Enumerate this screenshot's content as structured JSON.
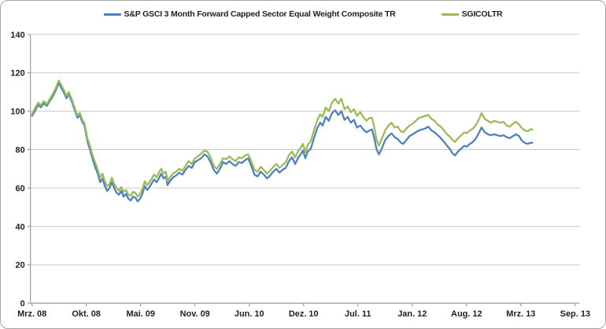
{
  "axis": {
    "grid_color": "#c8c8c8",
    "axis_color": "#9c9c9c",
    "label_color": "#1f1f1f",
    "frame_border_color": "#a6a6a6",
    "background": "#ffffff"
  },
  "chart_data": {
    "type": "line",
    "title": "",
    "xlabel": "",
    "ylabel": "",
    "grid": "horizontal",
    "legend_position": "top-center",
    "ylim": [
      0,
      140
    ],
    "y_ticks": [
      0,
      20,
      40,
      60,
      80,
      100,
      120,
      140
    ],
    "x_tick_labels": [
      "Mrz. 08",
      "Okt. 08",
      "Mai. 09",
      "Nov. 09",
      "Jun. 10",
      "Dez. 10",
      "Jul. 11",
      "Jan. 12",
      "Aug. 12",
      "Mrz. 13",
      "Sep. 13"
    ],
    "x_axis_note": "x_units are in tick-interval units: 0 = Mrz. 08 tick, 10 = Sep. 13 tick; data ends ~9.21 (approx. Apr. 13)",
    "x_units": [
      0,
      0.072,
      0.115,
      0.159,
      0.216,
      0.274,
      0.332,
      0.389,
      0.447,
      0.49,
      0.533,
      0.591,
      0.634,
      0.678,
      0.735,
      0.793,
      0.836,
      0.88,
      0.923,
      0.966,
      1.024,
      1.067,
      1.11,
      1.168,
      1.211,
      1.254,
      1.298,
      1.341,
      1.384,
      1.428,
      1.471,
      1.514,
      1.557,
      1.601,
      1.644,
      1.687,
      1.73,
      1.774,
      1.817,
      1.86,
      1.903,
      1.947,
      1.99,
      2.033,
      2.076,
      2.12,
      2.163,
      2.206,
      2.25,
      2.293,
      2.336,
      2.379,
      2.423,
      2.466,
      2.495,
      2.538,
      2.596,
      2.653,
      2.711,
      2.769,
      2.826,
      2.884,
      2.942,
      3.0,
      3.057,
      3.115,
      3.172,
      3.23,
      3.288,
      3.345,
      3.403,
      3.461,
      3.518,
      3.576,
      3.634,
      3.691,
      3.749,
      3.807,
      3.864,
      3.922,
      3.98,
      4.037,
      4.095,
      4.153,
      4.21,
      4.268,
      4.326,
      4.383,
      4.441,
      4.499,
      4.556,
      4.614,
      4.672,
      4.729,
      4.787,
      4.845,
      4.902,
      4.946,
      4.989,
      5.032,
      5.076,
      5.133,
      5.191,
      5.249,
      5.306,
      5.35,
      5.407,
      5.465,
      5.523,
      5.58,
      5.638,
      5.696,
      5.753,
      5.811,
      5.869,
      5.926,
      5.984,
      6.042,
      6.099,
      6.157,
      6.215,
      6.258,
      6.301,
      6.345,
      6.388,
      6.446,
      6.503,
      6.561,
      6.619,
      6.676,
      6.734,
      6.792,
      6.835,
      6.893,
      6.95,
      7.008,
      7.066,
      7.123,
      7.181,
      7.239,
      7.296,
      7.354,
      7.412,
      7.469,
      7.527,
      7.585,
      7.642,
      7.7,
      7.743,
      7.786,
      7.844,
      7.902,
      7.959,
      8.003,
      8.06,
      8.118,
      8.176,
      8.233,
      8.276,
      8.334,
      8.392,
      8.449,
      8.507,
      8.565,
      8.622,
      8.68,
      8.738,
      8.795,
      8.853,
      8.911,
      8.968,
      9.011,
      9.069,
      9.127,
      9.17,
      9.213
    ],
    "series": [
      {
        "name": "S&P GSCI 3 Month Forward Capped Sector Equal Weight Composite TR",
        "color": "#4F81BD",
        "values": [
          97.5,
          101,
          103.5,
          102,
          104,
          102.8,
          105.5,
          108,
          111.5,
          114.5,
          112.5,
          109.5,
          106.8,
          108.8,
          104.8,
          100,
          96.6,
          98,
          94.6,
          92.5,
          84,
          80,
          75.5,
          70.5,
          67.5,
          63,
          65,
          61,
          58.5,
          60,
          63,
          60,
          57.5,
          56.5,
          58.5,
          55.5,
          57,
          54.5,
          53.5,
          55.5,
          55,
          53,
          54.5,
          57,
          61,
          59,
          60.5,
          62.5,
          64.5,
          63,
          65,
          67.5,
          65,
          66,
          61.5,
          63.5,
          65.5,
          66.5,
          68,
          67,
          69.5,
          71.5,
          70.5,
          73.5,
          74.5,
          75.5,
          77.5,
          76.5,
          73.5,
          69.5,
          67.5,
          70,
          73.5,
          72.5,
          74,
          72.5,
          71.5,
          73.5,
          73,
          74.5,
          75.5,
          71.5,
          67,
          66,
          68.5,
          67,
          65,
          66.5,
          68.5,
          70,
          68,
          69.5,
          70.5,
          74,
          76,
          72.5,
          76,
          77.5,
          79.5,
          75.5,
          79,
          80.5,
          86,
          91,
          94,
          92.5,
          97,
          95,
          99,
          100.5,
          98,
          100,
          95.5,
          97,
          94,
          95.5,
          91.5,
          92.5,
          90.5,
          89,
          90,
          90.5,
          86,
          80,
          77.5,
          81,
          85,
          87,
          88.5,
          86.5,
          85.5,
          83.5,
          83,
          85,
          87,
          88,
          89,
          90,
          90.5,
          91,
          92,
          90,
          89,
          87.5,
          86,
          84,
          82,
          80,
          78,
          77,
          79,
          80.5,
          82,
          81.5,
          83,
          84,
          86,
          89,
          91.5,
          89,
          88,
          87.5,
          88,
          87.5,
          87,
          87.5,
          86.5,
          86,
          87,
          88,
          87,
          85,
          83.5,
          83,
          83.5,
          83.5
        ]
      },
      {
        "name": "SGICOLTR",
        "color": "#9BBB59",
        "values": [
          98.5,
          102.5,
          104.5,
          103,
          105.2,
          103.8,
          106.6,
          109.3,
          112.7,
          116,
          114,
          110.7,
          108,
          110,
          106,
          101.2,
          97.8,
          99.2,
          95.8,
          93.7,
          85.5,
          82,
          77.5,
          73,
          69.5,
          65.5,
          67.5,
          63.5,
          61,
          62,
          65.5,
          62,
          60,
          58.6,
          60.5,
          58,
          59,
          56.5,
          56,
          58,
          57.5,
          55.5,
          57,
          59.5,
          63.5,
          61.5,
          63,
          65,
          67,
          65.5,
          68,
          70,
          67.5,
          68.5,
          63.5,
          65.5,
          67.5,
          68.5,
          70,
          69,
          71.5,
          74,
          72.5,
          75.5,
          76.5,
          78,
          79.5,
          79,
          76,
          71.5,
          70,
          72.5,
          75.5,
          75,
          76.5,
          75,
          74,
          76,
          75.5,
          77,
          77.5,
          74,
          69.5,
          68.5,
          71,
          69.5,
          67.5,
          69,
          71,
          72.5,
          70.5,
          72,
          73.5,
          77,
          79,
          76,
          79.5,
          81,
          83,
          78.5,
          82.5,
          84.5,
          90,
          95,
          98.5,
          97,
          102,
          100,
          104.5,
          106.5,
          104,
          106.5,
          101,
          102.5,
          99.5,
          101,
          97.5,
          99.5,
          97,
          95,
          96.5,
          96.5,
          91.5,
          85,
          82,
          86,
          90,
          92.5,
          94,
          91.5,
          92,
          89.5,
          89,
          91,
          92.5,
          93.5,
          95,
          96.5,
          97,
          97.5,
          98,
          96,
          95,
          93,
          92,
          90,
          88,
          86.5,
          85,
          84,
          86,
          87.5,
          89,
          88.5,
          90,
          91,
          93,
          96,
          99,
          96,
          95,
          94,
          95,
          94.5,
          94,
          94.5,
          92.5,
          92,
          93.5,
          94.5,
          93,
          91.5,
          90,
          89.5,
          90.5,
          90.5
        ]
      }
    ]
  }
}
